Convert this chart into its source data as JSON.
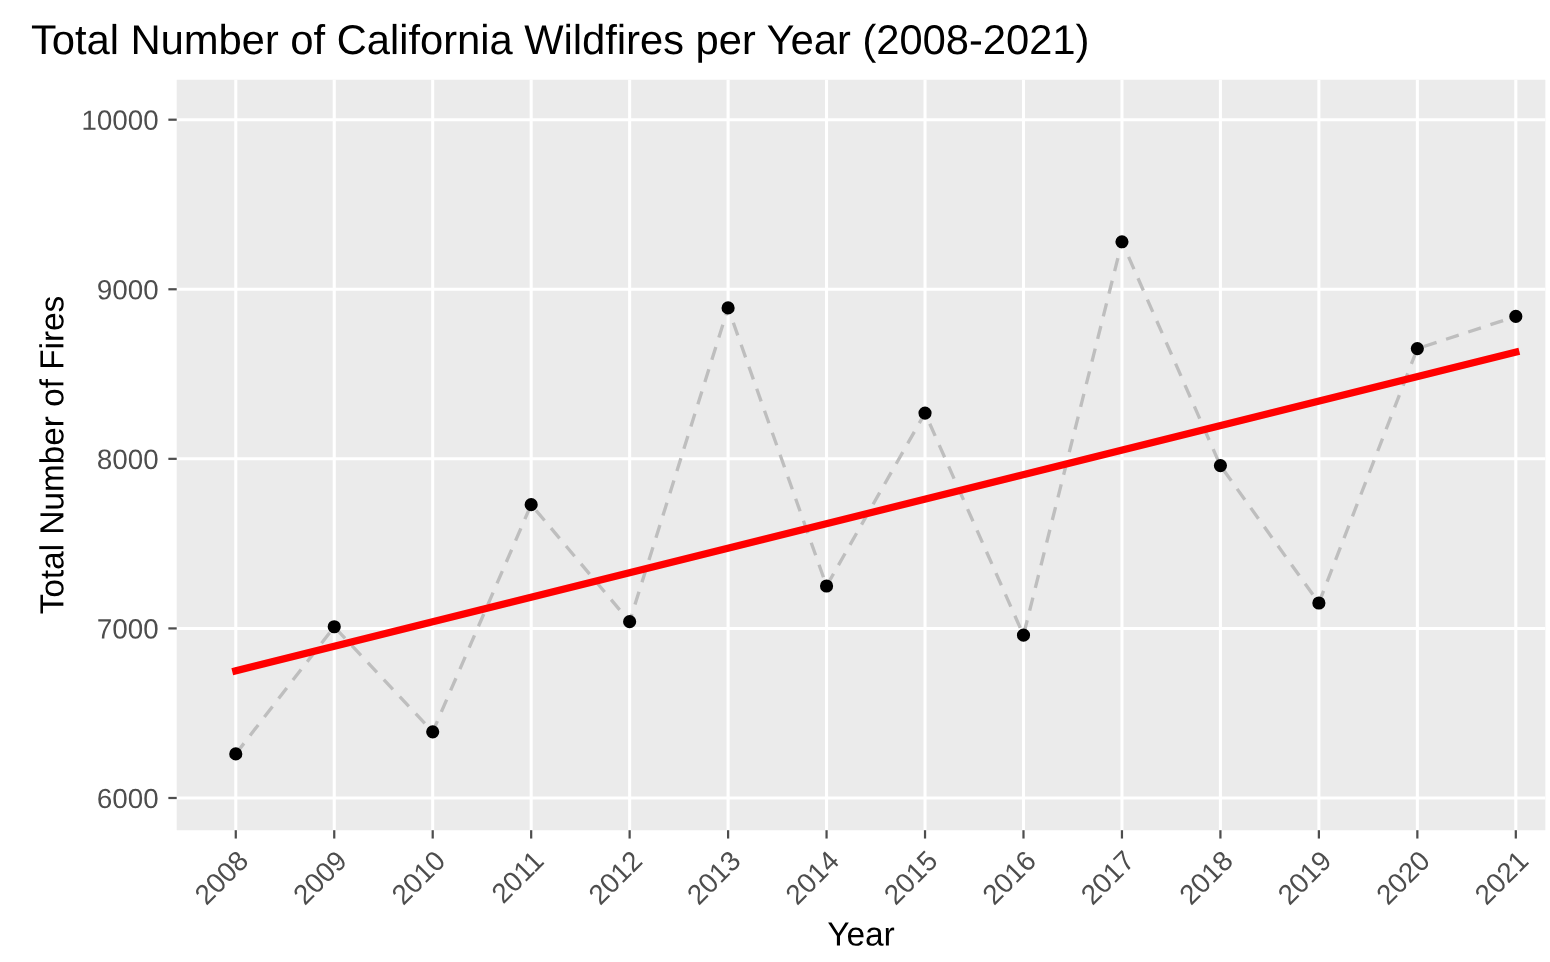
{
  "chart_data": {
    "type": "line",
    "title": "Total Number of California Wildfires per Year (2008-2021)",
    "xlabel": "Year",
    "ylabel": "Total Number of Fires",
    "x": [
      2008,
      2009,
      2010,
      2011,
      2012,
      2013,
      2014,
      2015,
      2016,
      2017,
      2018,
      2019,
      2020,
      2021
    ],
    "series": [
      {
        "color": "#bebebe",
        "line_style": "dashed",
        "values": [
          6260,
          7010,
          6390,
          7730,
          7040,
          8890,
          7250,
          8270,
          6960,
          9280,
          7960,
          7150,
          8650,
          8840
        ]
      },
      {
        "type": "scatter",
        "color": "#000000",
        "marker": "circle",
        "values": [
          6260,
          7010,
          6390,
          7730,
          7040,
          8890,
          7250,
          8270,
          6960,
          9280,
          7960,
          7150,
          8650,
          8840
        ]
      },
      {
        "color": "#ff0000",
        "line_style": "solid",
        "x": [
          2008,
          2021
        ],
        "values": [
          6750,
          8630
        ]
      }
    ],
    "xlim": [
      2007.4,
      2021.3
    ],
    "xticks": [
      2008,
      2009,
      2010,
      2011,
      2012,
      2013,
      2014,
      2015,
      2016,
      2017,
      2018,
      2019,
      2020,
      2021
    ],
    "ylim": [
      5810,
      10235
    ],
    "yticks": [
      6000,
      7000,
      8000,
      9000,
      10000
    ],
    "grid": true
  }
}
